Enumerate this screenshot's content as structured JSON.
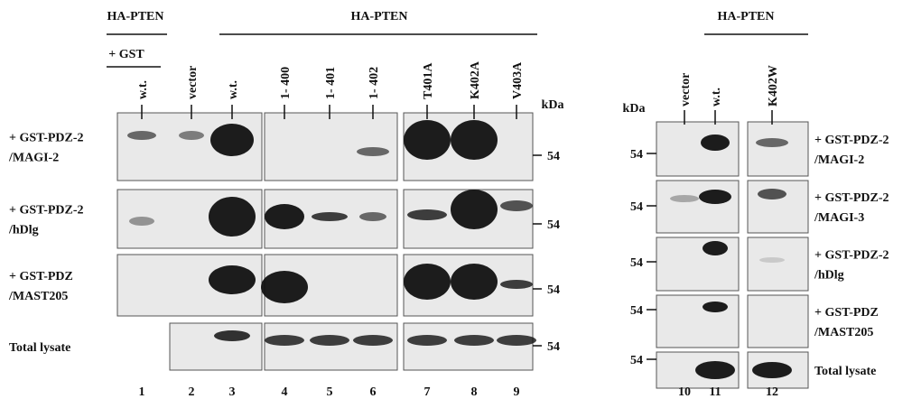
{
  "left_panel": {
    "header_single": "HA-PTEN",
    "gst_label": "+ GST",
    "header_group": "HA-PTEN",
    "lanes": [
      "w.t.",
      "vector",
      "w.t.",
      "1- 400",
      "1- 401",
      "1- 402",
      "T401A",
      "K402A",
      "V403A"
    ],
    "kda": "kDa",
    "rows": [
      {
        "label": [
          "+ GST-PDZ-2",
          "/MAGI-2"
        ],
        "marker": "54"
      },
      {
        "label": [
          "+ GST-PDZ-2",
          "/hDlg"
        ],
        "marker": "54"
      },
      {
        "label": [
          "+ GST-PDZ",
          "/MAST205"
        ],
        "marker": "54"
      },
      {
        "label": [
          "Total lysate"
        ],
        "marker": "54"
      }
    ],
    "lane_numbers": [
      "1",
      "2",
      "3",
      "4",
      "5",
      "6",
      "7",
      "8",
      "9"
    ]
  },
  "right_panel": {
    "header_group": "HA-PTEN",
    "lanes": [
      "vector",
      "w.t.",
      "K402W"
    ],
    "kda": "kDa",
    "rows": [
      {
        "label": [
          "+ GST-PDZ-2",
          "/MAGI-2"
        ],
        "marker": "54"
      },
      {
        "label": [
          "+ GST-PDZ-2",
          "/MAGI-3"
        ],
        "marker": "54"
      },
      {
        "label": [
          "+ GST-PDZ-2",
          "/hDlg"
        ],
        "marker": "54"
      },
      {
        "label": [
          "+ GST-PDZ",
          "/MAST205"
        ],
        "marker": "54"
      },
      {
        "label": [
          "Total lysate"
        ],
        "marker": "54"
      }
    ],
    "lane_numbers": [
      "10",
      "11",
      "12"
    ]
  }
}
